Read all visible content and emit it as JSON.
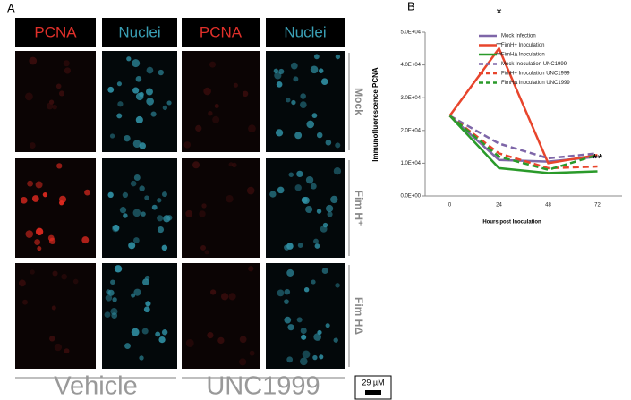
{
  "panel_a": {
    "label": "A",
    "columns": [
      "PCNA",
      "Nuclei",
      "PCNA",
      "Nuclei"
    ],
    "rows": [
      "Mock",
      "Fim H⁺",
      "Fim HΔ"
    ],
    "groups": [
      "Vehicle",
      "UNC1999"
    ],
    "scale_bar": "29 µM"
  },
  "chart_data": {
    "type": "line",
    "panel_label": "B",
    "y_label": "Immunofluorescence PCNA",
    "x_label": "Hours post Inoculation",
    "categories": [
      "0",
      "24",
      "48",
      "72"
    ],
    "ylim": [
      0,
      50000
    ],
    "yticks": [
      {
        "value": 0,
        "label": "0.0E+00"
      },
      {
        "value": 10000,
        "label": "1.0E+04"
      },
      {
        "value": 20000,
        "label": "2.0E+04"
      },
      {
        "value": 30000,
        "label": "3.0E+04"
      },
      {
        "value": 40000,
        "label": "4.0E+04"
      },
      {
        "value": 50000,
        "label": "5.0E+04"
      }
    ],
    "series": [
      {
        "name": "Mock Infection",
        "color": "#7e66a8",
        "dashed": false,
        "values": [
          24500,
          11000,
          10500,
          12000
        ]
      },
      {
        "name": "FimH+ Inoculation",
        "color": "#e8452c",
        "dashed": false,
        "values": [
          24500,
          45000,
          10000,
          12500
        ],
        "errors": [
          null,
          1500,
          null,
          null
        ]
      },
      {
        "name": "FimHΔ Inoculation",
        "color": "#2a9a2a",
        "dashed": false,
        "values": [
          24500,
          8500,
          7000,
          7500
        ]
      },
      {
        "name": "Mock Inoculation UNC1999",
        "color": "#7e66a8",
        "dashed": true,
        "values": [
          24500,
          16000,
          11500,
          13000
        ]
      },
      {
        "name": "FimH+ Inoculation UNC1999",
        "color": "#e8452c",
        "dashed": true,
        "values": [
          24500,
          13000,
          8500,
          9000
        ]
      },
      {
        "name": "FimHΔ Inoculation UNC1999",
        "color": "#2a9a2a",
        "dashed": true,
        "values": [
          24500,
          12000,
          8000,
          12500
        ]
      }
    ],
    "annotations": [
      "*",
      "**"
    ]
  }
}
